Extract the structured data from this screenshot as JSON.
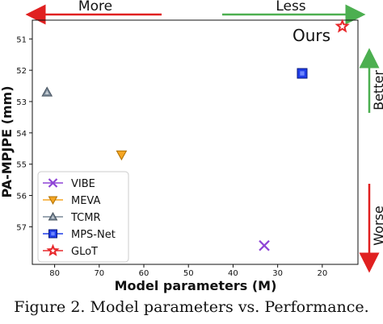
{
  "chart_data": {
    "type": "scatter",
    "title": "",
    "xlabel": "Model parameters (M)",
    "ylabel": "PA-MPJPE (mm)",
    "xlim": [
      85,
      12
    ],
    "ylim": [
      50.4,
      58.2
    ],
    "x_inverted": true,
    "y_inverted": true,
    "x_ticks": [
      "80",
      "70",
      "60",
      "50",
      "40",
      "30",
      "20"
    ],
    "y_ticks": [
      "51",
      "52",
      "53",
      "54",
      "55",
      "56",
      "57"
    ],
    "grid": false,
    "legend_position": "bottom-left",
    "series": [
      {
        "name": "VIBE",
        "marker": "x",
        "color": "#8e44d6",
        "x": 33.0,
        "y": 57.6
      },
      {
        "name": "MEVA",
        "marker": "triangle-down",
        "color": "#f5a623",
        "x": 65.0,
        "y": 54.7
      },
      {
        "name": "TCMR",
        "marker": "triangle-up",
        "color": "#7a8a99",
        "x": 81.7,
        "y": 52.7
      },
      {
        "name": "MPS-Net",
        "marker": "square",
        "color": "#1f3de8",
        "x": 24.5,
        "y": 52.1
      },
      {
        "name": "GLoT",
        "marker": "star",
        "color": "#e8282b",
        "x": 15.5,
        "y": 50.6
      }
    ],
    "annotations": {
      "more": "More",
      "less": "Less",
      "better": "Better",
      "worse": "Worse",
      "ours": "Ours"
    }
  },
  "caption": "Figure 2. Model parameters vs. Performance."
}
